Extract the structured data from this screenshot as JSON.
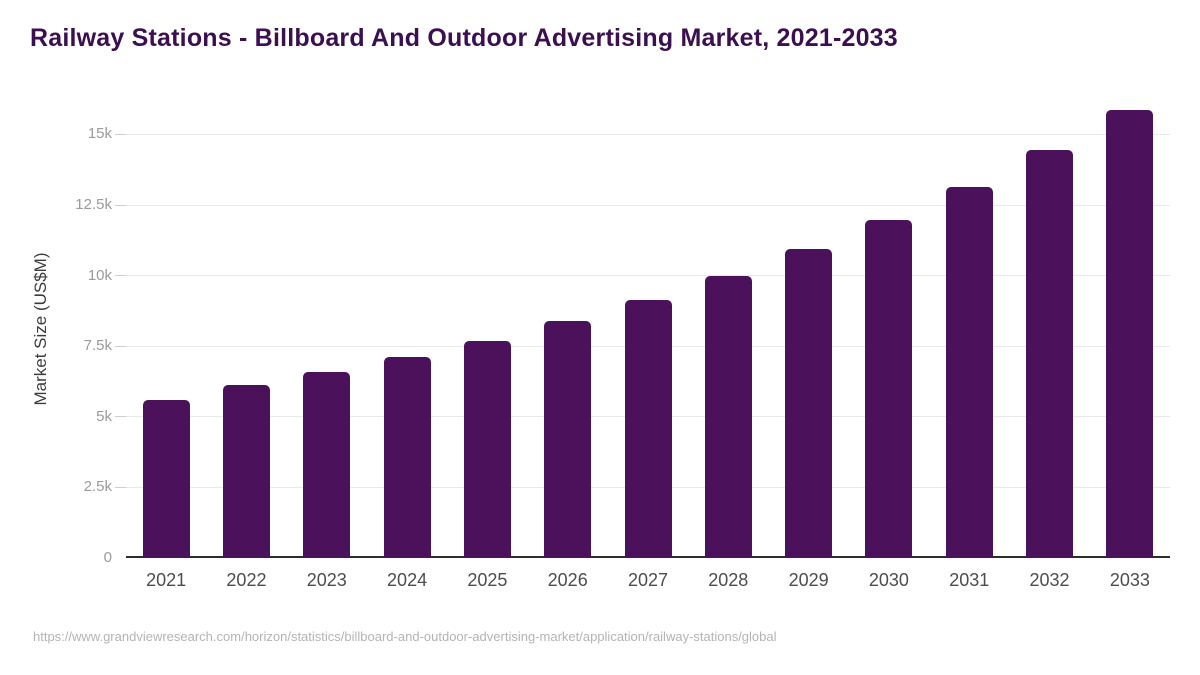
{
  "page": {
    "source_url": "https://www.grandviewresearch.com/horizon/statistics/billboard-and-outdoor-advertising-market/application/railway-stations/global"
  },
  "chart_data": {
    "type": "bar",
    "title": "Railway Stations - Billboard And Outdoor Advertising Market, 2021-2033",
    "categories": [
      "2021",
      "2022",
      "2023",
      "2024",
      "2025",
      "2026",
      "2027",
      "2028",
      "2029",
      "2030",
      "2031",
      "2032",
      "2033"
    ],
    "values": [
      5610,
      6130,
      6580,
      7120,
      7700,
      8390,
      9140,
      9990,
      10950,
      11980,
      13150,
      14460,
      15870
    ],
    "xlabel": "",
    "ylabel": "Market Size (US$M)",
    "ylim": [
      0,
      16220
    ],
    "yticks": [
      {
        "value": 0,
        "label": "0"
      },
      {
        "value": 2500,
        "label": "2.5k"
      },
      {
        "value": 5000,
        "label": "5k"
      },
      {
        "value": 7500,
        "label": "7.5k"
      },
      {
        "value": 10000,
        "label": "10k"
      },
      {
        "value": 12500,
        "label": "12.5k"
      },
      {
        "value": 15000,
        "label": "15k"
      }
    ],
    "grid": "horizontal",
    "legend": false,
    "bar_color": "#4b115a",
    "title_color": "#3b0f50",
    "grid_color": "#e9e9e9",
    "axis_line_color": "#2e2e2e",
    "y_tick_label_color": "#9b9b9b",
    "x_tick_label_color": "#4d4d4d",
    "ylabel_color": "#3c3c3c",
    "source_text_color": "#b4b4b4",
    "background_color": "#ffffff"
  }
}
